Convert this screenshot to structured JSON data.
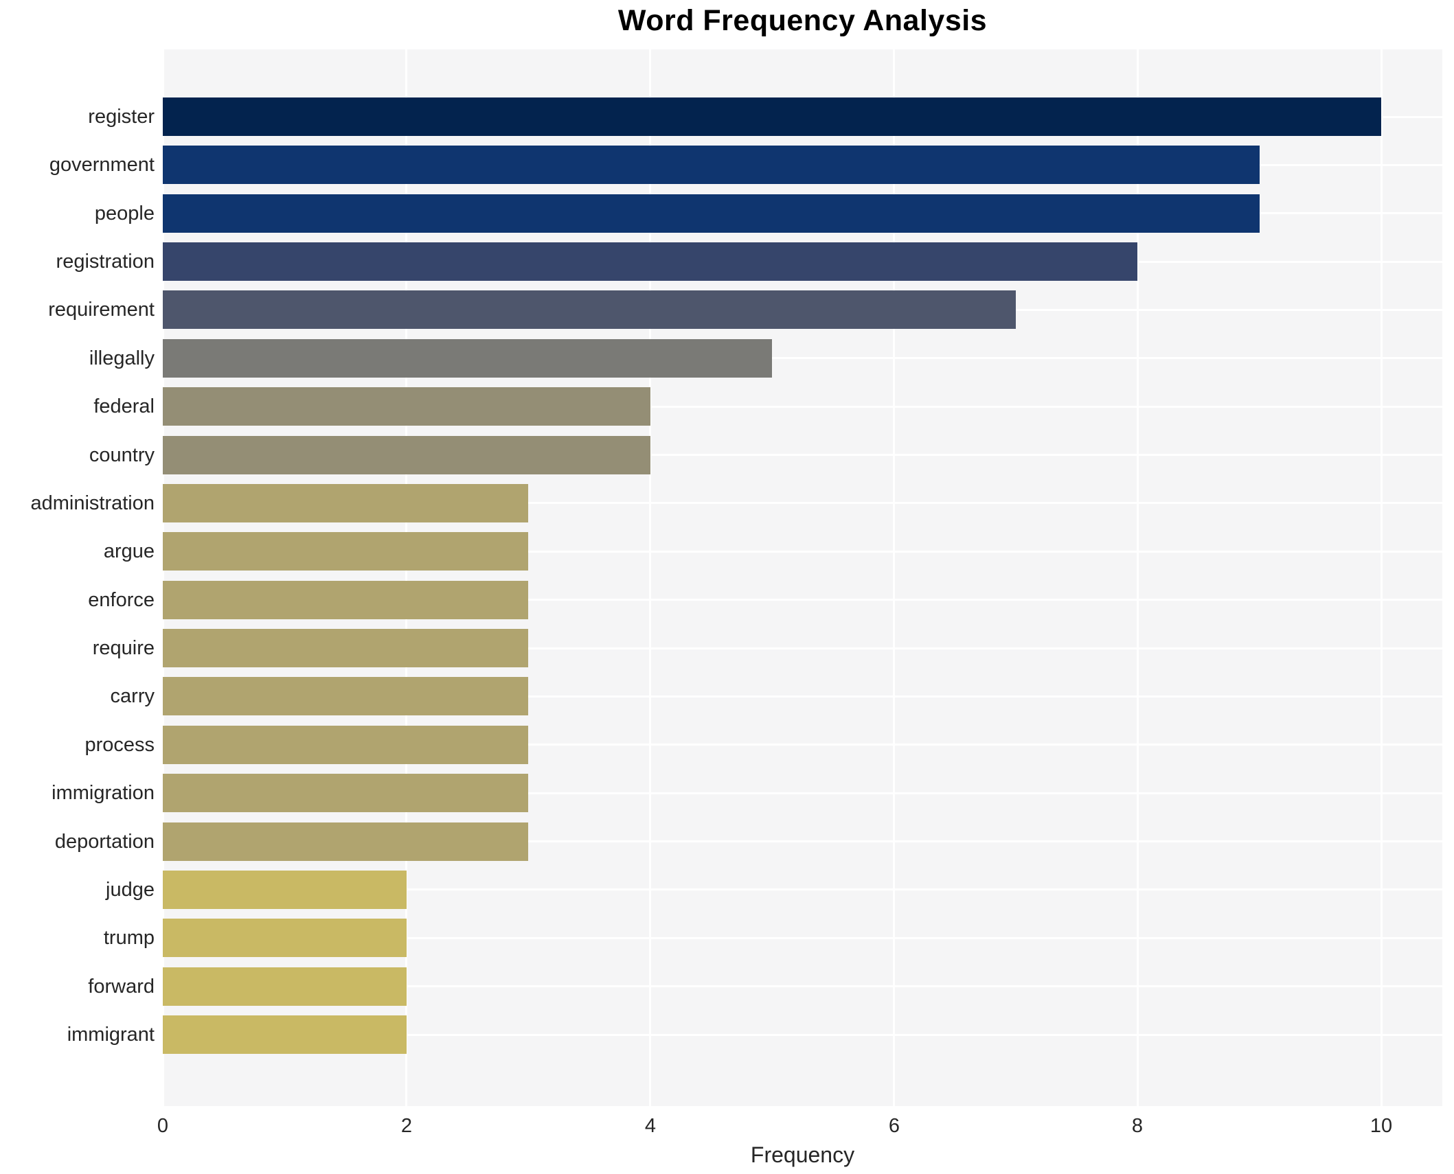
{
  "chart_data": {
    "type": "bar",
    "orientation": "horizontal",
    "title": "Word Frequency Analysis",
    "xlabel": "Frequency",
    "ylabel": "",
    "categories": [
      "register",
      "government",
      "people",
      "registration",
      "requirement",
      "illegally",
      "federal",
      "country",
      "administration",
      "argue",
      "enforce",
      "require",
      "carry",
      "process",
      "immigration",
      "deportation",
      "judge",
      "trump",
      "forward",
      "immigrant"
    ],
    "values": [
      10,
      9,
      9,
      8,
      7,
      5,
      4,
      4,
      3,
      3,
      3,
      3,
      3,
      3,
      3,
      3,
      2,
      2,
      2,
      2
    ],
    "bar_colors": [
      "#03234e",
      "#0f356f",
      "#0f356f",
      "#36456b",
      "#4e566c",
      "#7a7a76",
      "#948e75",
      "#948e75",
      "#b0a46f",
      "#b0a46f",
      "#b0a46f",
      "#b0a46f",
      "#b0a46f",
      "#b0a46f",
      "#b0a46f",
      "#b0a46f",
      "#c9b964",
      "#c9b964",
      "#c9b964",
      "#c9b964"
    ],
    "xticks": [
      0,
      2,
      4,
      6,
      8,
      10
    ],
    "xlim": [
      0,
      10.5
    ],
    "grid": true,
    "legend": "none",
    "plot_bg": "#f5f5f6",
    "grid_color": "#ffffff",
    "text_color": "#262626",
    "title_color": "#000000"
  }
}
